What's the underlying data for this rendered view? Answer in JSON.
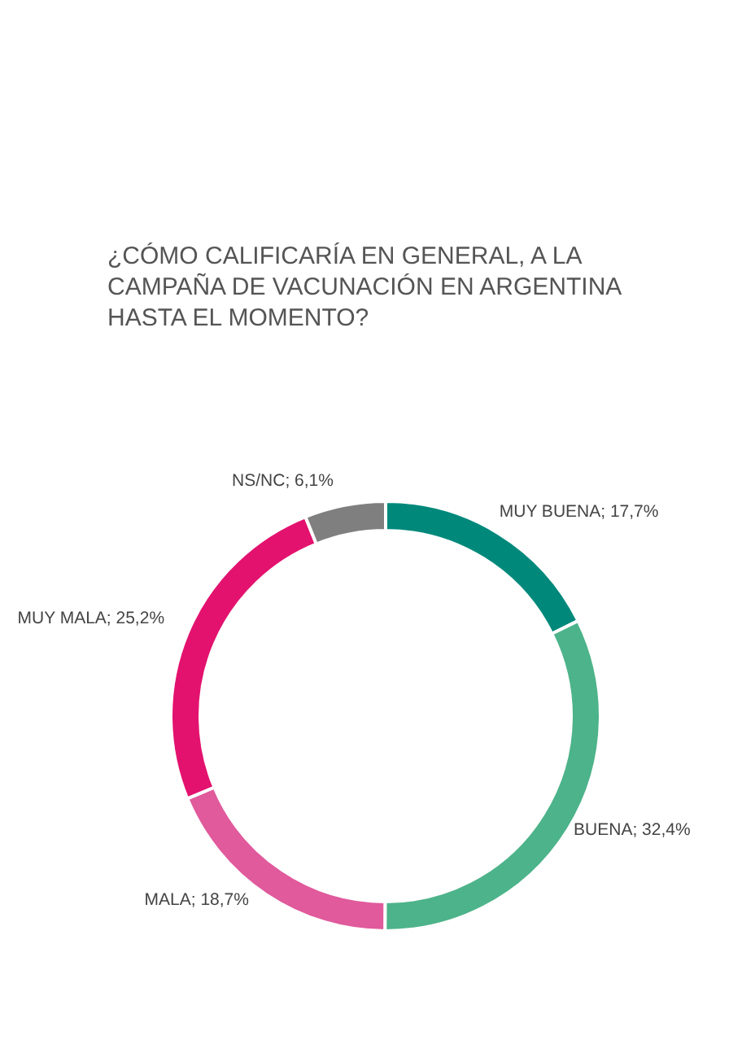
{
  "chart_data": {
    "type": "donut",
    "title": "¿CÓMO CALIFICARÍA EN GENERAL, A LA CAMPAÑA DE VACUNACIÓN EN ARGENTINA HASTA EL MOMENTO?",
    "categories": [
      "MUY BUENA",
      "BUENA",
      "MALA",
      "MUY MALA",
      "NS/NC"
    ],
    "values": [
      17.7,
      32.4,
      18.7,
      25.2,
      6.1
    ],
    "value_labels": [
      "17,7%",
      "32,4%",
      "18,7%",
      "25,2%",
      "6,1%"
    ],
    "colors": [
      "#00897b",
      "#4db38a",
      "#e05a9c",
      "#e3126f",
      "#7f7f7f"
    ]
  }
}
